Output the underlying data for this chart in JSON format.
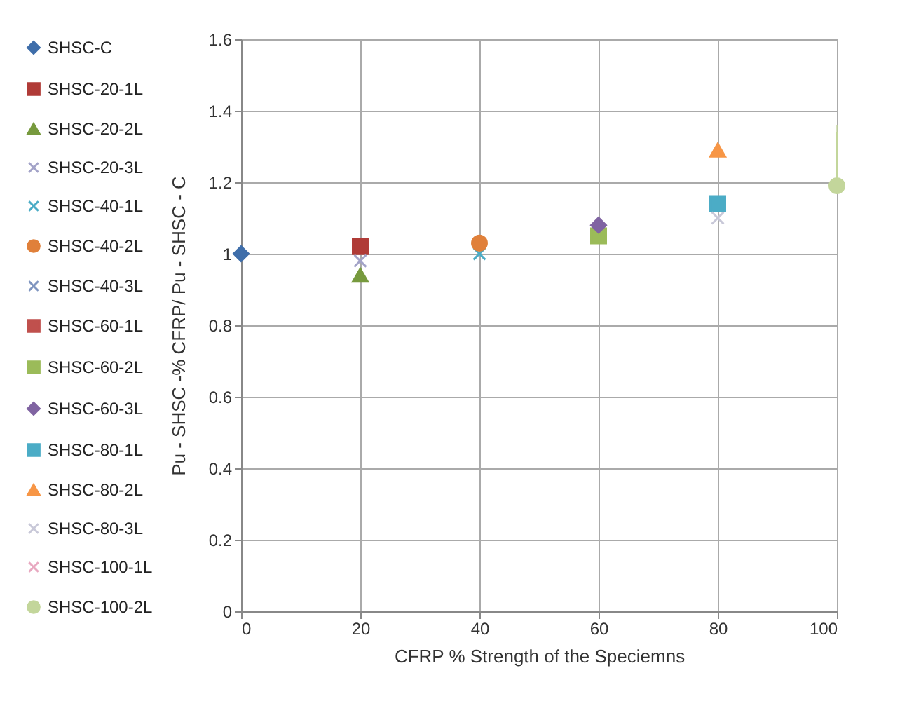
{
  "chart_data": {
    "type": "scatter",
    "xlabel": "CFRP % Strength of the Speciemns",
    "ylabel": "Pu - SHSC  -% CFRP/ Pu - SHSC - C",
    "xlim": [
      0,
      100
    ],
    "xticks": [
      0,
      20,
      40,
      60,
      80,
      100
    ],
    "ylim": [
      0,
      1.6
    ],
    "yticks": [
      0,
      0.2,
      0.4,
      0.6,
      0.8,
      1,
      1.2,
      1.4,
      1.6
    ],
    "grid": true,
    "legend": "left",
    "series": [
      {
        "name": "SHSC-C",
        "color": "#3f6eaa",
        "marker": "diamond",
        "x": [
          0
        ],
        "values": [
          1
        ]
      },
      {
        "name": "SHSC-20-1L",
        "color": "#b03b37",
        "marker": "square",
        "x": [
          20
        ],
        "values": [
          1.02
        ]
      },
      {
        "name": "SHSC-20-2L",
        "color": "#779a3e",
        "marker": "triangle",
        "x": [
          20
        ],
        "values": [
          0.94
        ]
      },
      {
        "name": "SHSC-20-3L",
        "color": "#a3a3c8",
        "marker": "cross",
        "x": [
          20
        ],
        "values": [
          0.98
        ]
      },
      {
        "name": "SHSC-40-1L",
        "color": "#4bacc6",
        "marker": "cross",
        "x": [
          40
        ],
        "values": [
          1
        ]
      },
      {
        "name": "SHSC-40-2L",
        "color": "#e0803a",
        "marker": "circle",
        "x": [
          40
        ],
        "values": [
          1.03
        ]
      },
      {
        "name": "SHSC-40-3L",
        "color": "#7f95c0",
        "marker": "cross",
        "values": [
          null
        ]
      },
      {
        "name": "SHSC-60-1L",
        "color": "#c0504d",
        "marker": "square",
        "values": [
          null
        ]
      },
      {
        "name": "SHSC-60-2L",
        "color": "#9bbb59",
        "marker": "square",
        "x": [
          60
        ],
        "values": [
          1.05
        ]
      },
      {
        "name": "SHSC-60-3L",
        "color": "#8064a2",
        "marker": "diamond",
        "x": [
          60
        ],
        "values": [
          1.08
        ]
      },
      {
        "name": "SHSC-80-1L",
        "color": "#4bacc6",
        "marker": "square",
        "x": [
          80
        ],
        "values": [
          1.14
        ]
      },
      {
        "name": "SHSC-80-2L",
        "color": "#f79646",
        "marker": "triangle",
        "x": [
          80
        ],
        "values": [
          1.29
        ]
      },
      {
        "name": "SHSC-80-3L",
        "color": "#c8c8d8",
        "marker": "cross",
        "x": [
          80
        ],
        "values": [
          1.1
        ]
      },
      {
        "name": "SHSC-100-1L",
        "color": "#e8a8c0",
        "marker": "cross",
        "values": [
          null
        ]
      },
      {
        "name": "SHSC-100-2L",
        "color": "#c3d69b",
        "marker": "circle",
        "x": [
          100
        ],
        "values": [
          1.19
        ],
        "errors": [
          [
            1.19,
            1.34
          ]
        ]
      }
    ]
  }
}
